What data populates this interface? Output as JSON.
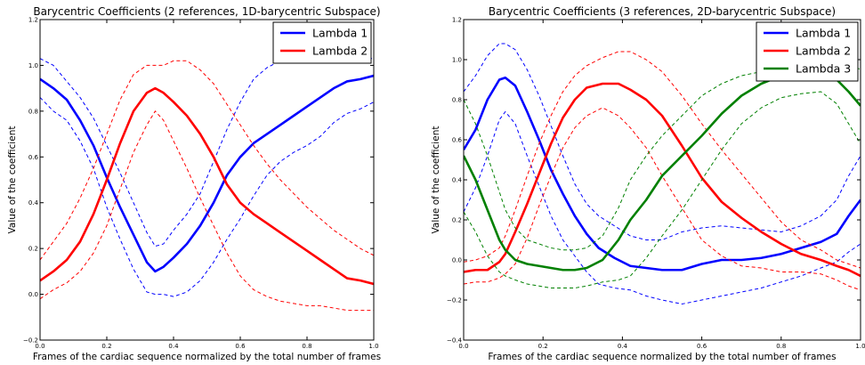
{
  "chart_data": [
    {
      "type": "line",
      "title": "Barycentric Coefficients (2 references, 1D-barycentric Subspace)",
      "xlabel": "Frames of the cardiac sequence normalized by the total number of frames",
      "ylabel": "Value of the coefficient",
      "xlim": [
        0.0,
        1.0
      ],
      "ylim": [
        -0.2,
        1.2
      ],
      "xticks": [
        "0.0",
        "0.2",
        "0.4",
        "0.6",
        "0.8",
        "1.0"
      ],
      "yticks": [
        "−0.2",
        "0.0",
        "0.2",
        "0.4",
        "0.6",
        "0.8",
        "1.0",
        "1.2"
      ],
      "grid": false,
      "legend": "top-right",
      "series": [
        {
          "name": "Lambda 1",
          "color": "#0000ff",
          "x": [
            0,
            0.04,
            0.08,
            0.12,
            0.16,
            0.2,
            0.24,
            0.28,
            0.32,
            0.345,
            0.37,
            0.4,
            0.44,
            0.48,
            0.52,
            0.56,
            0.6,
            0.64,
            0.68,
            0.72,
            0.76,
            0.8,
            0.84,
            0.88,
            0.92,
            0.96,
            1.0
          ],
          "y": [
            0.94,
            0.9,
            0.85,
            0.76,
            0.65,
            0.51,
            0.38,
            0.26,
            0.14,
            0.1,
            0.12,
            0.16,
            0.22,
            0.3,
            0.4,
            0.52,
            0.6,
            0.66,
            0.7,
            0.74,
            0.78,
            0.82,
            0.86,
            0.9,
            0.93,
            0.94,
            0.955
          ],
          "upper": [
            1.03,
            1.0,
            0.93,
            0.86,
            0.77,
            0.65,
            0.53,
            0.4,
            0.27,
            0.21,
            0.22,
            0.28,
            0.35,
            0.44,
            0.58,
            0.72,
            0.84,
            0.94,
            0.99,
            1.02,
            1.03,
            1.03,
            1.03,
            1.03,
            1.03,
            1.03,
            1.03
          ],
          "lower": [
            0.86,
            0.8,
            0.76,
            0.67,
            0.55,
            0.38,
            0.24,
            0.11,
            0.01,
            0.0,
            0.0,
            -0.01,
            0.01,
            0.06,
            0.14,
            0.24,
            0.33,
            0.43,
            0.52,
            0.58,
            0.62,
            0.65,
            0.69,
            0.75,
            0.79,
            0.81,
            0.84
          ]
        },
        {
          "name": "Lambda 2",
          "color": "#ff0000",
          "x": [
            0,
            0.04,
            0.08,
            0.12,
            0.16,
            0.2,
            0.24,
            0.28,
            0.32,
            0.345,
            0.37,
            0.4,
            0.44,
            0.48,
            0.52,
            0.56,
            0.6,
            0.64,
            0.68,
            0.72,
            0.76,
            0.8,
            0.84,
            0.88,
            0.92,
            0.96,
            1.0
          ],
          "y": [
            0.06,
            0.1,
            0.15,
            0.23,
            0.35,
            0.5,
            0.66,
            0.8,
            0.88,
            0.9,
            0.88,
            0.84,
            0.78,
            0.7,
            0.6,
            0.48,
            0.4,
            0.35,
            0.31,
            0.27,
            0.23,
            0.19,
            0.15,
            0.11,
            0.07,
            0.06,
            0.045
          ],
          "upper": [
            0.15,
            0.23,
            0.31,
            0.42,
            0.55,
            0.7,
            0.85,
            0.96,
            1.0,
            1.0,
            1.0,
            1.02,
            1.02,
            0.98,
            0.92,
            0.83,
            0.74,
            0.65,
            0.57,
            0.5,
            0.44,
            0.38,
            0.33,
            0.28,
            0.24,
            0.2,
            0.17
          ],
          "lower": [
            -0.02,
            0.02,
            0.05,
            0.1,
            0.18,
            0.3,
            0.46,
            0.62,
            0.74,
            0.8,
            0.76,
            0.67,
            0.55,
            0.42,
            0.3,
            0.18,
            0.08,
            0.02,
            -0.01,
            -0.03,
            -0.04,
            -0.05,
            -0.05,
            -0.06,
            -0.07,
            -0.07,
            -0.07
          ]
        }
      ]
    },
    {
      "type": "line",
      "title": "Barycentric Coefficients (3 references, 2D-barycentric Subspace)",
      "xlabel": "Frames of the cardiac sequence normalized by the total number of frames",
      "ylabel": "Value of the coefficient",
      "xlim": [
        0.0,
        1.0
      ],
      "ylim": [
        -0.4,
        1.2
      ],
      "xticks": [
        "0.0",
        "0.2",
        "0.4",
        "0.6",
        "0.8",
        "1.0"
      ],
      "yticks": [
        "−0.4",
        "−0.2",
        "0.0",
        "0.2",
        "0.4",
        "0.6",
        "0.8",
        "1.0",
        "1.2"
      ],
      "grid": false,
      "legend": "top-right",
      "series": [
        {
          "name": "Lambda 1",
          "color": "#0000ff",
          "x": [
            0,
            0.03,
            0.06,
            0.09,
            0.105,
            0.13,
            0.16,
            0.19,
            0.22,
            0.25,
            0.28,
            0.31,
            0.34,
            0.38,
            0.42,
            0.46,
            0.5,
            0.55,
            0.6,
            0.65,
            0.7,
            0.75,
            0.8,
            0.85,
            0.9,
            0.94,
            0.97,
            1.0
          ],
          "y": [
            0.55,
            0.65,
            0.8,
            0.9,
            0.91,
            0.87,
            0.74,
            0.6,
            0.45,
            0.33,
            0.22,
            0.13,
            0.06,
            0.01,
            -0.03,
            -0.04,
            -0.05,
            -0.05,
            -0.02,
            0.0,
            0.0,
            0.01,
            0.03,
            0.06,
            0.09,
            0.13,
            0.22,
            0.3
          ]
        },
        {
          "name": "Lambda 1 band",
          "color": "#0000ff",
          "x": [
            0,
            0.03,
            0.06,
            0.09,
            0.105,
            0.13,
            0.16,
            0.19,
            0.22,
            0.25,
            0.28,
            0.31,
            0.34,
            0.38,
            0.42,
            0.46,
            0.5,
            0.55,
            0.6,
            0.65,
            0.7,
            0.75,
            0.8,
            0.85,
            0.9,
            0.94,
            0.97,
            1.0
          ],
          "upper": [
            0.84,
            0.92,
            1.02,
            1.08,
            1.08,
            1.05,
            0.95,
            0.82,
            0.67,
            0.52,
            0.38,
            0.28,
            0.22,
            0.17,
            0.12,
            0.1,
            0.1,
            0.14,
            0.16,
            0.17,
            0.16,
            0.15,
            0.14,
            0.17,
            0.22,
            0.3,
            0.42,
            0.52
          ],
          "lower": [
            0.24,
            0.36,
            0.52,
            0.7,
            0.74,
            0.68,
            0.52,
            0.37,
            0.22,
            0.1,
            0.02,
            -0.06,
            -0.12,
            -0.14,
            -0.15,
            -0.18,
            -0.2,
            -0.22,
            -0.2,
            -0.18,
            -0.16,
            -0.14,
            -0.11,
            -0.08,
            -0.04,
            -0.01,
            0.04,
            0.08
          ]
        },
        {
          "name": "Lambda 2",
          "color": "#ff0000",
          "x": [
            0,
            0.03,
            0.06,
            0.09,
            0.105,
            0.13,
            0.16,
            0.19,
            0.22,
            0.25,
            0.28,
            0.31,
            0.35,
            0.39,
            0.42,
            0.46,
            0.5,
            0.55,
            0.6,
            0.65,
            0.7,
            0.75,
            0.8,
            0.85,
            0.9,
            0.94,
            0.97,
            1.0
          ],
          "y": [
            -0.06,
            -0.05,
            -0.05,
            -0.01,
            0.03,
            0.14,
            0.28,
            0.43,
            0.58,
            0.71,
            0.8,
            0.86,
            0.88,
            0.88,
            0.85,
            0.8,
            0.72,
            0.57,
            0.41,
            0.29,
            0.21,
            0.14,
            0.08,
            0.03,
            0.0,
            -0.03,
            -0.05,
            -0.08
          ]
        },
        {
          "name": "Lambda 2 band",
          "color": "#ff0000",
          "x": [
            0,
            0.03,
            0.06,
            0.09,
            0.105,
            0.13,
            0.16,
            0.19,
            0.22,
            0.25,
            0.28,
            0.31,
            0.35,
            0.39,
            0.42,
            0.46,
            0.5,
            0.55,
            0.6,
            0.65,
            0.7,
            0.75,
            0.8,
            0.85,
            0.9,
            0.94,
            0.97,
            1.0
          ],
          "upper": [
            -0.01,
            0.0,
            0.02,
            0.06,
            0.12,
            0.25,
            0.42,
            0.58,
            0.72,
            0.84,
            0.92,
            0.97,
            1.01,
            1.04,
            1.04,
            1.0,
            0.94,
            0.82,
            0.68,
            0.55,
            0.43,
            0.31,
            0.19,
            0.1,
            0.05,
            0.0,
            -0.02,
            -0.04
          ],
          "lower": [
            -0.12,
            -0.11,
            -0.11,
            -0.09,
            -0.07,
            -0.02,
            0.11,
            0.27,
            0.42,
            0.56,
            0.66,
            0.72,
            0.76,
            0.72,
            0.66,
            0.56,
            0.42,
            0.26,
            0.1,
            0.02,
            -0.03,
            -0.04,
            -0.06,
            -0.06,
            -0.07,
            -0.1,
            -0.13,
            -0.15
          ]
        },
        {
          "name": "Lambda 3",
          "color": "#008000",
          "x": [
            0,
            0.03,
            0.06,
            0.09,
            0.105,
            0.13,
            0.16,
            0.19,
            0.22,
            0.25,
            0.28,
            0.31,
            0.35,
            0.39,
            0.42,
            0.46,
            0.5,
            0.55,
            0.6,
            0.65,
            0.7,
            0.75,
            0.8,
            0.85,
            0.9,
            0.94,
            0.97,
            1.0
          ],
          "y": [
            0.52,
            0.4,
            0.25,
            0.1,
            0.05,
            0.0,
            -0.02,
            -0.03,
            -0.04,
            -0.05,
            -0.05,
            -0.04,
            0.0,
            0.1,
            0.2,
            0.3,
            0.42,
            0.52,
            0.62,
            0.73,
            0.82,
            0.88,
            0.92,
            0.94,
            0.94,
            0.9,
            0.84,
            0.77
          ]
        },
        {
          "name": "Lambda 3 band",
          "color": "#008000",
          "x": [
            0,
            0.03,
            0.06,
            0.09,
            0.105,
            0.13,
            0.16,
            0.19,
            0.22,
            0.25,
            0.28,
            0.31,
            0.35,
            0.39,
            0.42,
            0.46,
            0.5,
            0.55,
            0.6,
            0.65,
            0.7,
            0.75,
            0.8,
            0.85,
            0.9,
            0.94,
            0.97,
            1.0
          ],
          "upper": [
            0.8,
            0.68,
            0.52,
            0.34,
            0.25,
            0.16,
            0.1,
            0.08,
            0.06,
            0.05,
            0.05,
            0.06,
            0.12,
            0.26,
            0.4,
            0.52,
            0.62,
            0.72,
            0.82,
            0.88,
            0.92,
            0.94,
            0.98,
            1.0,
            1.0,
            1.0,
            0.98,
            0.95
          ],
          "lower": [
            0.24,
            0.14,
            0.02,
            -0.06,
            -0.08,
            -0.1,
            -0.12,
            -0.13,
            -0.14,
            -0.14,
            -0.14,
            -0.13,
            -0.11,
            -0.1,
            -0.08,
            0.01,
            0.12,
            0.25,
            0.4,
            0.55,
            0.68,
            0.76,
            0.81,
            0.83,
            0.84,
            0.78,
            0.68,
            0.58
          ]
        }
      ]
    }
  ]
}
